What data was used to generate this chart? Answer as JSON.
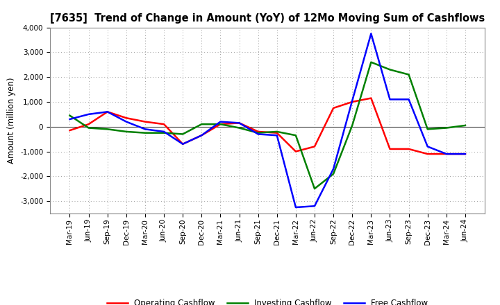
{
  "title": "[7635]  Trend of Change in Amount (YoY) of 12Mo Moving Sum of Cashflows",
  "ylabel": "Amount (million yen)",
  "x_labels": [
    "Mar-19",
    "Jun-19",
    "Sep-19",
    "Dec-19",
    "Mar-20",
    "Jun-20",
    "Sep-20",
    "Dec-20",
    "Mar-21",
    "Jun-21",
    "Sep-21",
    "Dec-21",
    "Mar-22",
    "Jun-22",
    "Sep-22",
    "Dec-22",
    "Mar-23",
    "Jun-23",
    "Sep-23",
    "Dec-23",
    "Mar-24",
    "Jun-24"
  ],
  "operating": [
    -150,
    100,
    600,
    350,
    200,
    100,
    -700,
    -350,
    100,
    150,
    -200,
    -250,
    -1000,
    -800,
    750,
    1000,
    1150,
    -900,
    -900,
    -1100,
    -1100,
    -1100
  ],
  "investing": [
    450,
    -50,
    -100,
    -200,
    -250,
    -250,
    -300,
    100,
    100,
    -50,
    -250,
    -200,
    -350,
    -2500,
    -1900,
    50,
    2600,
    2300,
    2100,
    -100,
    -50,
    50
  ],
  "free": [
    300,
    500,
    600,
    200,
    -100,
    -200,
    -700,
    -350,
    200,
    150,
    -300,
    -350,
    -3250,
    -3200,
    -1700,
    1050,
    3750,
    1100,
    1100,
    -800,
    -1100,
    -1100
  ],
  "operating_color": "#ff0000",
  "investing_color": "#008000",
  "free_color": "#0000ff",
  "ylim": [
    -3500,
    4000
  ],
  "yticks": [
    -3000,
    -2000,
    -1000,
    0,
    1000,
    2000,
    3000,
    4000
  ],
  "background_color": "#ffffff",
  "plot_bg_color": "#f5f5f5",
  "grid_color": "#999999",
  "title_fontsize": 10.5,
  "axis_label_fontsize": 8.5,
  "tick_fontsize": 7.5,
  "legend_labels": [
    "Operating Cashflow",
    "Investing Cashflow",
    "Free Cashflow"
  ],
  "legend_fontsize": 8.5,
  "line_width": 1.8
}
